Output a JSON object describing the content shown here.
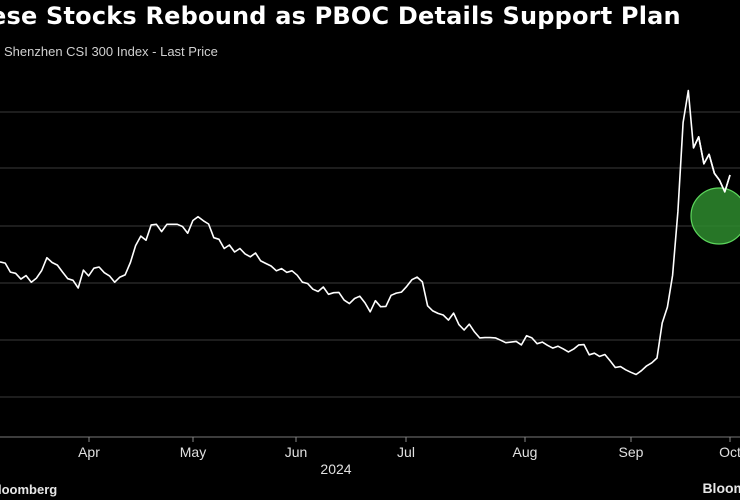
{
  "header": {
    "title": "ese Stocks Rebound as PBOC Details Support Plan",
    "subtitle": "Shenzhen CSI 300 Index - Last Price"
  },
  "footer": {
    "source": "loomberg",
    "brand": "Bloom"
  },
  "colors": {
    "background": "#000000",
    "line": "#ffffff",
    "grid": "#3a3a3a",
    "highlight_fill": "#2e8b2e",
    "highlight_stroke": "#5cd65c"
  },
  "chart_data": {
    "type": "line",
    "title": "ese Stocks Rebound as PBOC Details Support Plan",
    "subtitle": "Shenzhen CSI 300 Index - Last Price",
    "xlabel": "2024",
    "ylabel": "",
    "x_tick_labels": [
      "Apr",
      "May",
      "Jun",
      "Jul",
      "Aug",
      "Sep",
      "Oct"
    ],
    "year_label": "2024",
    "ylim": [
      3000,
      4150
    ],
    "grid": true,
    "legend": "none",
    "annotation": "green circle highlighting latest decline",
    "series": [
      {
        "values": [
          3522,
          3518,
          3490,
          3486,
          3468,
          3479,
          3458,
          3471,
          3495,
          3535,
          3520,
          3512,
          3490,
          3469,
          3464,
          3440,
          3496,
          3478,
          3502,
          3506,
          3488,
          3478,
          3458,
          3474,
          3481,
          3520,
          3573,
          3603,
          3590,
          3638,
          3640,
          3617,
          3640,
          3640,
          3640,
          3633,
          3612,
          3652,
          3664,
          3651,
          3641,
          3598,
          3593,
          3564,
          3575,
          3553,
          3564,
          3547,
          3538,
          3550,
          3525,
          3517,
          3509,
          3494,
          3501,
          3489,
          3494,
          3480,
          3458,
          3454,
          3436,
          3429,
          3443,
          3420,
          3425,
          3426,
          3402,
          3391,
          3407,
          3414,
          3393,
          3365,
          3400,
          3381,
          3382,
          3417,
          3424,
          3427,
          3445,
          3466,
          3474,
          3459,
          3384,
          3368,
          3360,
          3355,
          3339,
          3361,
          3325,
          3308,
          3326,
          3302,
          3283,
          3284,
          3284,
          3283,
          3276,
          3268,
          3270,
          3272,
          3261,
          3290,
          3283,
          3265,
          3270,
          3260,
          3251,
          3257,
          3249,
          3239,
          3248,
          3261,
          3262,
          3230,
          3235,
          3225,
          3231,
          3211,
          3190,
          3193,
          3183,
          3175,
          3168,
          3180,
          3195,
          3205,
          3220,
          3330,
          3380,
          3480,
          3680,
          3960,
          4060,
          3880,
          3915,
          3830,
          3860,
          3800,
          3778,
          3742,
          3795
        ]
      }
    ]
  }
}
